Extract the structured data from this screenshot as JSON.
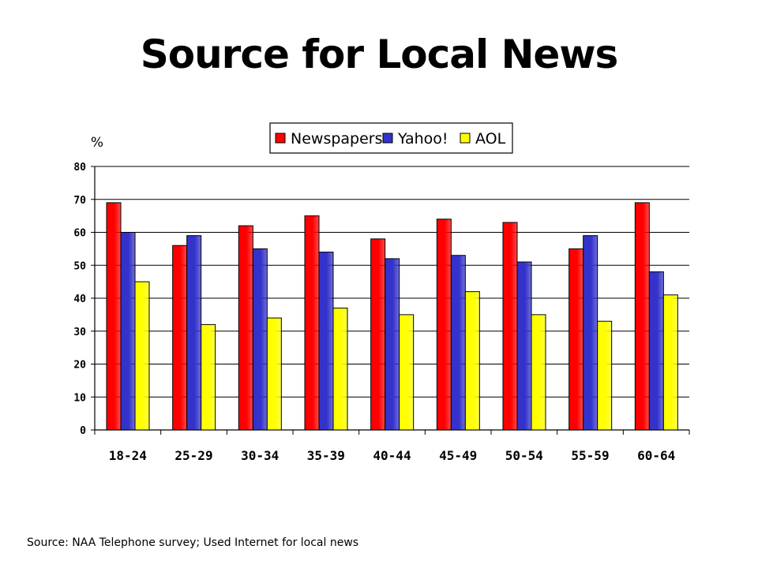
{
  "slide": {
    "title": "Source for Local News",
    "source": "Source: NAA Telephone survey; Used Internet for local news"
  },
  "chart_data": {
    "type": "bar",
    "title": "",
    "xlabel": "",
    "ylabel": "%",
    "ylim": [
      0,
      80
    ],
    "yticks": [
      0,
      10,
      20,
      30,
      40,
      50,
      60,
      70,
      80
    ],
    "grid": true,
    "legend_position": "top-right",
    "categories": [
      "18-24",
      "25-29",
      "30-34",
      "35-39",
      "40-44",
      "45-49",
      "50-54",
      "55-59",
      "60-64"
    ],
    "series": [
      {
        "name": "Newspapers",
        "color": "#ff0000",
        "values": [
          69,
          56,
          62,
          65,
          58,
          64,
          63,
          55,
          69
        ]
      },
      {
        "name": "Yahoo!",
        "color": "#3333cc",
        "values": [
          60,
          59,
          55,
          54,
          52,
          53,
          51,
          59,
          48
        ]
      },
      {
        "name": "AOL",
        "color": "#ffff00",
        "values": [
          45,
          32,
          34,
          37,
          35,
          42,
          35,
          33,
          41
        ]
      }
    ]
  }
}
